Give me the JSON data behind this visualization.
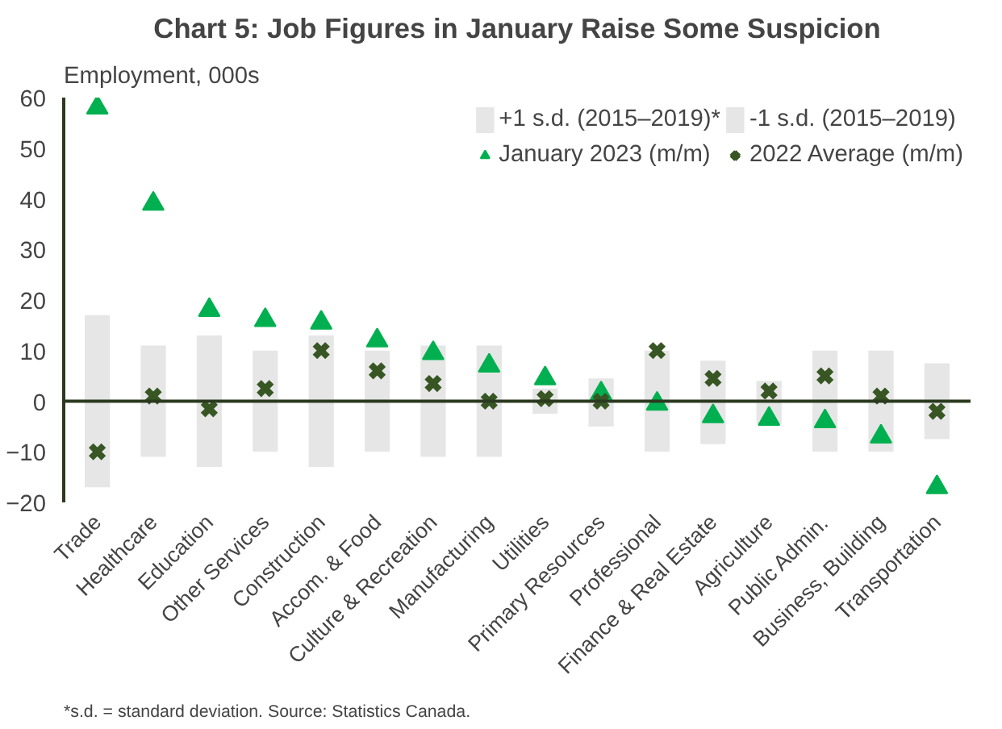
{
  "chart_data": {
    "type": "bar",
    "title": "Chart 5: Job Figures in January Raise Some Suspicion",
    "ylabel": "Employment, 000s",
    "categories": [
      "Trade",
      "Healthcare",
      "Education",
      "Other Services",
      "Construction",
      "Accom. & Food",
      "Culture & Recreation",
      "Manufacturing",
      "Utilities",
      "Primary Resources",
      "Professional",
      "Finance & Real Estate",
      "Agriculture",
      "Public Admin.",
      "Business, Building",
      "Transportation"
    ],
    "stacked": true,
    "series": [
      {
        "name": "+1 s.d. (2015–2019)*",
        "color": "#e6e6e6",
        "values": [
          17,
          11,
          13,
          10,
          13,
          10,
          11,
          11,
          2.5,
          4.5,
          10,
          8,
          4,
          10,
          10,
          7.5
        ]
      },
      {
        "name": "-1 s.d. (2015–2019)",
        "color": "#e6e6e6",
        "values": [
          -17,
          -11,
          -13,
          -10,
          -13,
          -10,
          -11,
          -11,
          -2.5,
          -5,
          -10,
          -8.5,
          -4.5,
          -10,
          -10,
          -7.5
        ]
      },
      {
        "name": "January 2023 (m/m)",
        "type": "scatter",
        "marker": "triangle",
        "color": "#00b050",
        "values": [
          58,
          39,
          18,
          16,
          15.5,
          12,
          9.5,
          7,
          4.5,
          1.5,
          -0.5,
          -3,
          -3.5,
          -4,
          -7,
          -17
        ]
      },
      {
        "name": "2022 Average (m/m)",
        "type": "scatter",
        "marker": "cross",
        "color": "#375623",
        "values": [
          -10,
          1,
          -1.5,
          2.5,
          10,
          6,
          3.5,
          0,
          0.5,
          0,
          10,
          4.5,
          2,
          5,
          1,
          -2
        ]
      }
    ],
    "ylim": [
      -20,
      60
    ],
    "yticks": [
      -20,
      -10,
      0,
      10,
      20,
      30,
      40,
      50,
      60
    ],
    "legend": "top right",
    "annotations": [
      "*s.d. = standard deviation. Source: Statistics Canada."
    ]
  }
}
